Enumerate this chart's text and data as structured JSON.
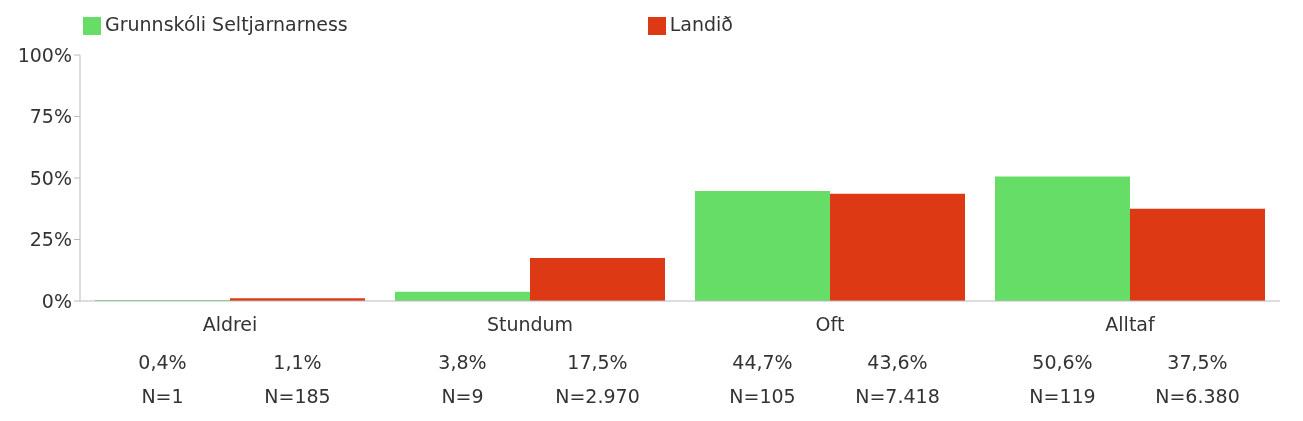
{
  "chart_data": {
    "type": "bar",
    "categories": [
      "Aldrei",
      "Stundum",
      "Oft",
      "Alltaf"
    ],
    "series": [
      {
        "name": "Grunnskóli Seltjarnarness",
        "color": "#66dd66",
        "values": [
          0.4,
          3.8,
          44.7,
          50.6
        ],
        "value_labels": [
          "0,4%",
          "3,8%",
          "44,7%",
          "50,6%"
        ]
      },
      {
        "name": "Landið",
        "color": "#dd3915",
        "values": [
          1.1,
          17.5,
          43.6,
          37.5
        ],
        "value_labels": [
          "1,1%",
          "17,5%",
          "43,6%",
          "37,5%"
        ]
      }
    ],
    "annotations": [
      "N=1",
      "N=185",
      "N=9",
      "N=2.970",
      "N=105",
      "N=7.418",
      "N=119",
      "N=6.380"
    ],
    "ylim": [
      0,
      100
    ],
    "yticks": [
      {
        "value": 0,
        "label": "0%"
      },
      {
        "value": 25,
        "label": "25%"
      },
      {
        "value": 50,
        "label": "50%"
      },
      {
        "value": 75,
        "label": "75%"
      },
      {
        "value": 100,
        "label": "100%"
      }
    ],
    "grid": false,
    "legend": "top left"
  }
}
